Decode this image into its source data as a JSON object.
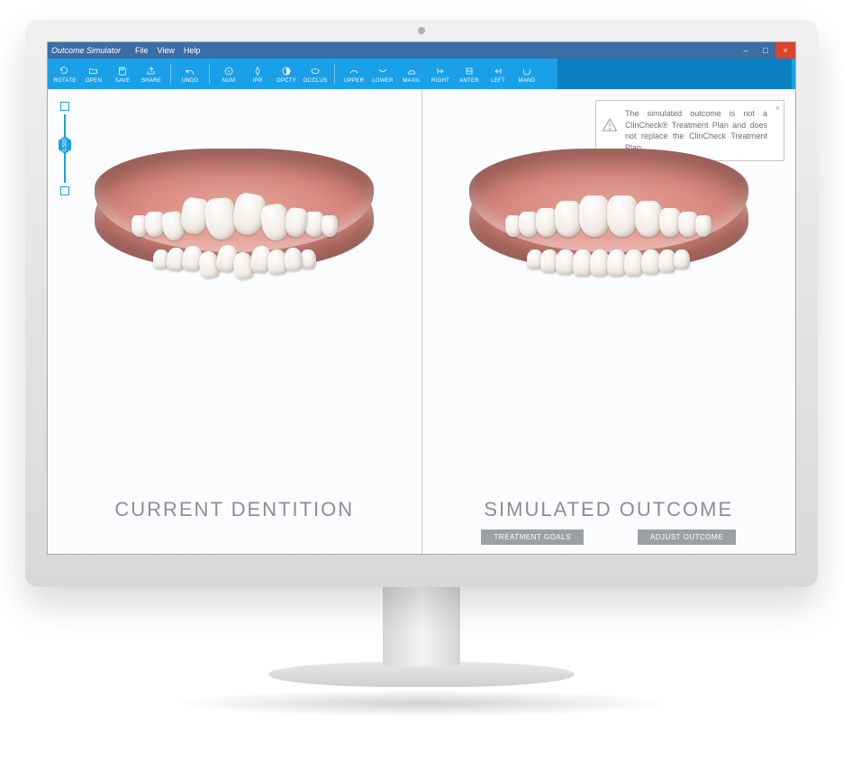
{
  "app": {
    "title": "Outcome Simulator",
    "menu": [
      "File",
      "View",
      "Help"
    ]
  },
  "window_controls": {
    "minimize": "–",
    "maximize": "□",
    "close": "×"
  },
  "toolbar": {
    "group_file": [
      {
        "label": "ROTATE",
        "icon": "rotate"
      },
      {
        "label": "OPEN",
        "icon": "open"
      },
      {
        "label": "SAVE",
        "icon": "save"
      },
      {
        "label": "SHARE",
        "icon": "share"
      }
    ],
    "group_edit": [
      {
        "label": "UNDO",
        "icon": "undo"
      }
    ],
    "group_tools": [
      {
        "label": "NUM",
        "icon": "num"
      },
      {
        "label": "IPR",
        "icon": "ipr"
      },
      {
        "label": "OPCTY",
        "icon": "opacity"
      },
      {
        "label": "OCCLUS",
        "icon": "occlus"
      }
    ],
    "group_views": [
      {
        "label": "UPPER",
        "icon": "upper"
      },
      {
        "label": "LOWER",
        "icon": "lower"
      },
      {
        "label": "MAXIL",
        "icon": "maxil"
      },
      {
        "label": "RIGHT",
        "icon": "right"
      },
      {
        "label": "ANTER",
        "icon": "anter"
      },
      {
        "label": "LEFT",
        "icon": "left"
      },
      {
        "label": "MAND",
        "icon": "mand"
      }
    ]
  },
  "slider": {
    "value": "0.500"
  },
  "notice": {
    "text": "The simulated outcome is not a ClinCheck® Treatment Plan and does not replace the ClinCheck Treatment Plan."
  },
  "panes": {
    "left_label": "CURRENT DENTITION",
    "right_label": "SIMULATED OUTCOME"
  },
  "buttons": {
    "goals": "TREATMENT GOALS",
    "adjust": "ADJUST OUTCOME"
  },
  "colors": {
    "menubar": "#3a6ea5",
    "toolbar": "#1aa0e8",
    "toolbar_dark": "#0b7fbf",
    "label_text": "#8a8f94",
    "button_bg": "#9aa0a6",
    "close_btn": "#d9432f",
    "gum": "#d88a80",
    "tooth": "#f4efe9"
  },
  "teeth": {
    "upper_widths": [
      18,
      22,
      24,
      30,
      34,
      34,
      30,
      24,
      22,
      18
    ],
    "upper_heights": [
      24,
      28,
      32,
      40,
      46,
      46,
      40,
      32,
      28,
      24
    ],
    "lower_widths": [
      18,
      20,
      22,
      22,
      22,
      22,
      22,
      22,
      20,
      18
    ],
    "lower_heights": [
      22,
      26,
      28,
      30,
      30,
      30,
      30,
      28,
      26,
      22
    ]
  }
}
